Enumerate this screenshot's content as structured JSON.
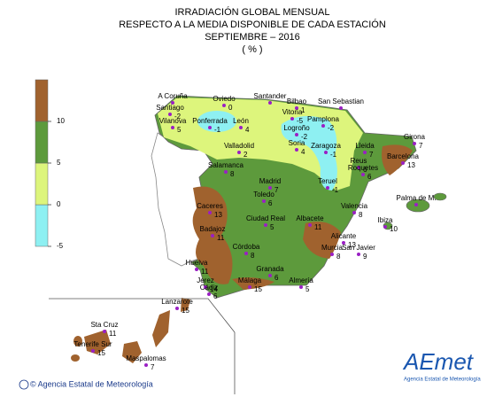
{
  "title": [
    "IRRADIACIÓN GLOBAL MENSUAL",
    "RESPECTO A LA MEDIA DISPONIBLE DE CADA ESTACIÓN",
    "SEPTIEMBRE – 2016",
    "( % )"
  ],
  "legend": {
    "range": [
      -5,
      15
    ],
    "ticks": [
      -5,
      0,
      5,
      10
    ],
    "bands": [
      {
        "from": -5,
        "to": 0,
        "color": "#8ef0f2"
      },
      {
        "from": 0,
        "to": 5,
        "color": "#ddf57c"
      },
      {
        "from": 5,
        "to": 10,
        "color": "#5d9a3c"
      },
      {
        "from": 10,
        "to": 15,
        "color": "#a0622e"
      }
    ]
  },
  "stations": [
    {
      "name": "A Coruña",
      "value": null
    },
    {
      "name": "Santiago",
      "value": -2
    },
    {
      "name": "Oviedo",
      "value": 0
    },
    {
      "name": "Santander",
      "value": null
    },
    {
      "name": "Bilbao",
      "value": 1
    },
    {
      "name": "San Sebastian",
      "value": null
    },
    {
      "name": "Vitoria",
      "value": -5
    },
    {
      "name": "Pamplona",
      "value": -2
    },
    {
      "name": "Logroño",
      "value": -2
    },
    {
      "name": "Vilanova",
      "value": 5
    },
    {
      "name": "Ponferrada",
      "value": -1
    },
    {
      "name": "León",
      "value": 4
    },
    {
      "name": "Valladolid",
      "value": 2
    },
    {
      "name": "Soria",
      "value": 4
    },
    {
      "name": "Zaragoza",
      "value": -1
    },
    {
      "name": "Lleida",
      "value": 7
    },
    {
      "name": "Girona",
      "value": 7
    },
    {
      "name": "Barcelona",
      "value": 13
    },
    {
      "name": "Reus",
      "value": 6
    },
    {
      "name": "Roquetes",
      "value": 6
    },
    {
      "name": "Salamanca",
      "value": 8
    },
    {
      "name": "Madrid",
      "value": 7
    },
    {
      "name": "Teruel",
      "value": -1
    },
    {
      "name": "Palma de M.",
      "value": null
    },
    {
      "name": "Toledo",
      "value": 6
    },
    {
      "name": "Caceres",
      "value": 13
    },
    {
      "name": "Valencia",
      "value": 8
    },
    {
      "name": "Ciudad Real",
      "value": 5
    },
    {
      "name": "Albacete",
      "value": 11
    },
    {
      "name": "Ibiza",
      "value": 10
    },
    {
      "name": "Badajoz",
      "value": 11
    },
    {
      "name": "Alicante",
      "value": 13
    },
    {
      "name": "Murcia",
      "value": 8
    },
    {
      "name": "San Javier",
      "value": 9
    },
    {
      "name": "Córdoba",
      "value": 8
    },
    {
      "name": "Huelva",
      "value": 11
    },
    {
      "name": "Granada",
      "value": 6
    },
    {
      "name": "Jerez",
      "value": 14
    },
    {
      "name": "Almería",
      "value": 5
    },
    {
      "name": "Málaga",
      "value": 15
    },
    {
      "name": "Cádiz",
      "value": 6
    },
    {
      "name": "Lanzarote",
      "value": 15
    },
    {
      "name": "Sta Cruz",
      "value": 11
    },
    {
      "name": "Tenerife Sur",
      "value": 15
    },
    {
      "name": "Maspalomas",
      "value": 7
    }
  ],
  "footer": "© Agencia Estatal de Meteorología",
  "logo": "AEmet",
  "logo_caption": "Agencia Estatal de Meteorología"
}
